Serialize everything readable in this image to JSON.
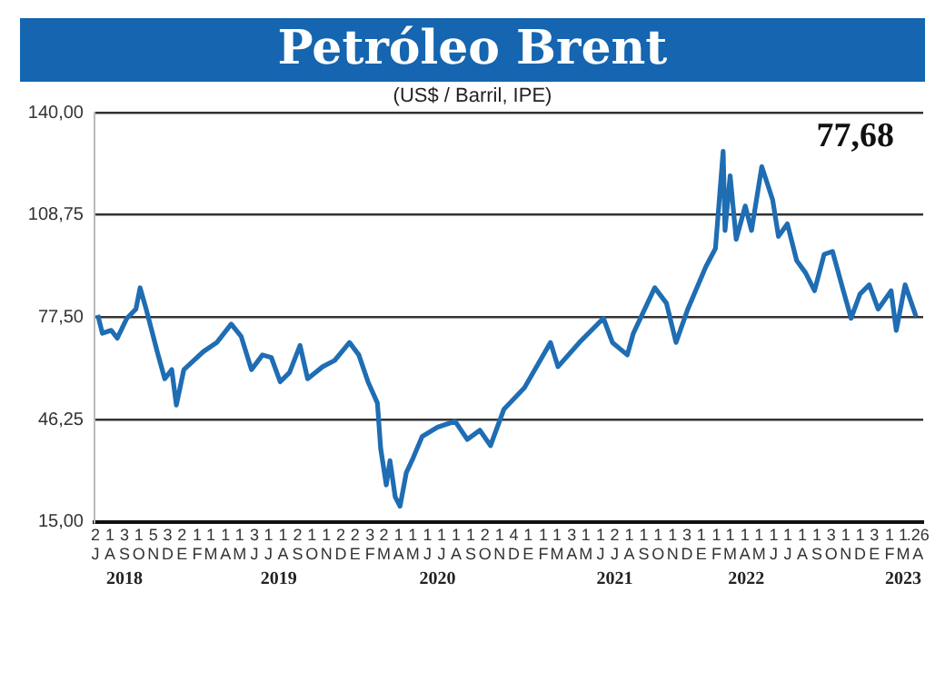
{
  "chart_data": {
    "type": "line",
    "title": "Petróleo Brent",
    "subtitle": "(US$ / Barril, IPE)",
    "annotations": [
      "77,68"
    ],
    "x": [
      "2018-07-21",
      "2018-07-31",
      "2018-08-19",
      "2018-09-01",
      "2018-09-21",
      "2018-10-10",
      "2018-10-19",
      "2018-11-01",
      "2018-11-24",
      "2018-12-10",
      "2018-12-25",
      "2019-01-04",
      "2019-01-20",
      "2019-02-28",
      "2019-03-29",
      "2019-04-28",
      "2019-05-19",
      "2019-06-10",
      "2019-07-03",
      "2019-07-22",
      "2019-08-10",
      "2019-08-30",
      "2019-09-21",
      "2019-10-07",
      "2019-11-08",
      "2019-12-03",
      "2020-01-04",
      "2020-01-24",
      "2020-02-12",
      "2020-03-02",
      "2020-03-09",
      "2020-03-21",
      "2020-03-29",
      "2020-04-09",
      "2020-04-19",
      "2020-05-02",
      "2020-05-17",
      "2020-06-05",
      "2020-07-07",
      "2020-08-14",
      "2020-09-09",
      "2020-10-05",
      "2020-10-28",
      "2020-11-25",
      "2021-01-08",
      "2021-03-02",
      "2021-03-18",
      "2021-05-02",
      "2021-06-22",
      "2021-07-11",
      "2021-08-12",
      "2021-08-25",
      "2021-10-09",
      "2021-11-03",
      "2021-11-23",
      "2021-12-18",
      "2022-01-26",
      "2022-02-14",
      "2022-03-01",
      "2022-03-05",
      "2022-03-16",
      "2022-03-29",
      "2022-04-17",
      "2022-04-30",
      "2022-05-22",
      "2022-06-14",
      "2022-06-26",
      "2022-07-15",
      "2022-08-04",
      "2022-08-23",
      "2022-09-11",
      "2022-10-01",
      "2022-10-19",
      "2022-11-11",
      "2022-11-27",
      "2022-12-16",
      "2023-01-05",
      "2023-01-24",
      "2023-02-19",
      "2023-03-01",
      "2023-03-20",
      "2023-04-09",
      "2023-04-12"
    ],
    "series": [
      {
        "color": "#1f6db3",
        "values": [
          78.2,
          72.6,
          73.5,
          71.1,
          77.2,
          80,
          86.5,
          80,
          67,
          58.7,
          61.5,
          50.7,
          61.5,
          67,
          69.8,
          75.4,
          71.7,
          61.5,
          66,
          65.2,
          57.8,
          60.6,
          68.9,
          58.7,
          62.4,
          64.3,
          69.8,
          66,
          57.8,
          51.3,
          37.4,
          26.3,
          33.7,
          22.6,
          19.8,
          30,
          34.6,
          41.1,
          43.9,
          45.7,
          40.2,
          43,
          38.3,
          49.4,
          56,
          69.8,
          62.4,
          69.8,
          77.2,
          69.8,
          66,
          72.6,
          86.5,
          81.8,
          69.8,
          80,
          93,
          98.5,
          128.2,
          104,
          120.7,
          101.3,
          111.5,
          104,
          123.5,
          113.3,
          102.2,
          106,
          94.8,
          91.1,
          85.6,
          96.7,
          97.6,
          85.6,
          77.2,
          84.6,
          87.4,
          80,
          85.6,
          73.5,
          87.4,
          79.1,
          77.68
        ]
      }
    ],
    "xlim": [
      "2018-07-14",
      "2023-04-27"
    ],
    "xticks": [
      {
        "value": "2018-07-16",
        "label": "2\nJ"
      },
      {
        "value": "2018-08-16",
        "label": "1\nA"
      },
      {
        "value": "2018-09-16",
        "label": "3\nS"
      },
      {
        "value": "2018-10-16",
        "label": "1\nO"
      },
      {
        "value": "2018-11-16",
        "label": "5\nN"
      },
      {
        "value": "2018-12-16",
        "label": "3\nD"
      },
      {
        "value": "2019-01-16",
        "label": "2\nE"
      },
      {
        "value": "2019-02-16",
        "label": "1\nF"
      },
      {
        "value": "2019-03-16",
        "label": "1\nM"
      },
      {
        "value": "2019-04-16",
        "label": "1\nA"
      },
      {
        "value": "2019-05-16",
        "label": "1\nM"
      },
      {
        "value": "2019-06-16",
        "label": "3\nJ"
      },
      {
        "value": "2019-07-16",
        "label": "1\nJ"
      },
      {
        "value": "2019-08-16",
        "label": "1\nA"
      },
      {
        "value": "2019-09-16",
        "label": "2\nS"
      },
      {
        "value": "2019-10-16",
        "label": "1\nO"
      },
      {
        "value": "2019-11-16",
        "label": "1\nN"
      },
      {
        "value": "2019-12-16",
        "label": "2\nD"
      },
      {
        "value": "2020-01-16",
        "label": "2\nE"
      },
      {
        "value": "2020-02-16",
        "label": "3\nF"
      },
      {
        "value": "2020-03-16",
        "label": "2\nM"
      },
      {
        "value": "2020-04-16",
        "label": "1\nA"
      },
      {
        "value": "2020-05-16",
        "label": "1\nM"
      },
      {
        "value": "2020-06-16",
        "label": "1\nJ"
      },
      {
        "value": "2020-07-16",
        "label": "1\nJ"
      },
      {
        "value": "2020-08-16",
        "label": "1\nA"
      },
      {
        "value": "2020-09-16",
        "label": "1\nS"
      },
      {
        "value": "2020-10-16",
        "label": "2\nO"
      },
      {
        "value": "2020-11-16",
        "label": "1\nN"
      },
      {
        "value": "2020-12-16",
        "label": "4\nD"
      },
      {
        "value": "2021-01-16",
        "label": "1\nE"
      },
      {
        "value": "2021-02-16",
        "label": "1\nF"
      },
      {
        "value": "2021-03-16",
        "label": "1\nM"
      },
      {
        "value": "2021-04-16",
        "label": "3\nA"
      },
      {
        "value": "2021-05-16",
        "label": "1\nM"
      },
      {
        "value": "2021-06-16",
        "label": "1\nJ"
      },
      {
        "value": "2021-07-16",
        "label": "2\nJ"
      },
      {
        "value": "2021-08-16",
        "label": "1\nA"
      },
      {
        "value": "2021-09-16",
        "label": "1\nS"
      },
      {
        "value": "2021-10-16",
        "label": "1\nO"
      },
      {
        "value": "2021-11-16",
        "label": "1\nN"
      },
      {
        "value": "2021-12-16",
        "label": "3\nD"
      },
      {
        "value": "2022-01-16",
        "label": "1\nE"
      },
      {
        "value": "2022-02-16",
        "label": "1\nF"
      },
      {
        "value": "2022-03-16",
        "label": "1\nM"
      },
      {
        "value": "2022-04-16",
        "label": "1\nA"
      },
      {
        "value": "2022-05-16",
        "label": "1\nM"
      },
      {
        "value": "2022-06-16",
        "label": "1\nJ"
      },
      {
        "value": "2022-07-16",
        "label": "1\nJ"
      },
      {
        "value": "2022-08-16",
        "label": "1\nA"
      },
      {
        "value": "2022-09-16",
        "label": "1\nS"
      },
      {
        "value": "2022-10-16",
        "label": "3\nO"
      },
      {
        "value": "2022-11-16",
        "label": "1\nN"
      },
      {
        "value": "2022-12-16",
        "label": "1\nD"
      },
      {
        "value": "2023-01-16",
        "label": "3\nE"
      },
      {
        "value": "2023-02-16",
        "label": "1\nF"
      },
      {
        "value": "2023-03-16",
        "label": "1\nM"
      },
      {
        "value": "2023-04-16",
        "label": ".26\nA"
      }
    ],
    "x2lim": [
      "2018-07-14",
      "2023-04-27"
    ],
    "x2ticks": [
      {
        "value": "2018-09-16",
        "label": "2018"
      },
      {
        "value": "2019-08-07",
        "label": "2019"
      },
      {
        "value": "2020-07-07",
        "label": "2020"
      },
      {
        "value": "2021-07-16",
        "label": "2021"
      },
      {
        "value": "2022-04-19",
        "label": "2022"
      },
      {
        "value": "2023-03-16",
        "label": "2023"
      }
    ],
    "ylim": [
      15,
      140
    ],
    "yticks": [
      {
        "value": 15,
        "label": "15,00"
      },
      {
        "value": 46.25,
        "label": "46,25"
      },
      {
        "value": 77.5,
        "label": "77,50"
      },
      {
        "value": 108.75,
        "label": "108,75"
      },
      {
        "value": 140,
        "label": "140,00"
      }
    ],
    "grid": "y",
    "marker": "none",
    "line_style": "solid"
  }
}
